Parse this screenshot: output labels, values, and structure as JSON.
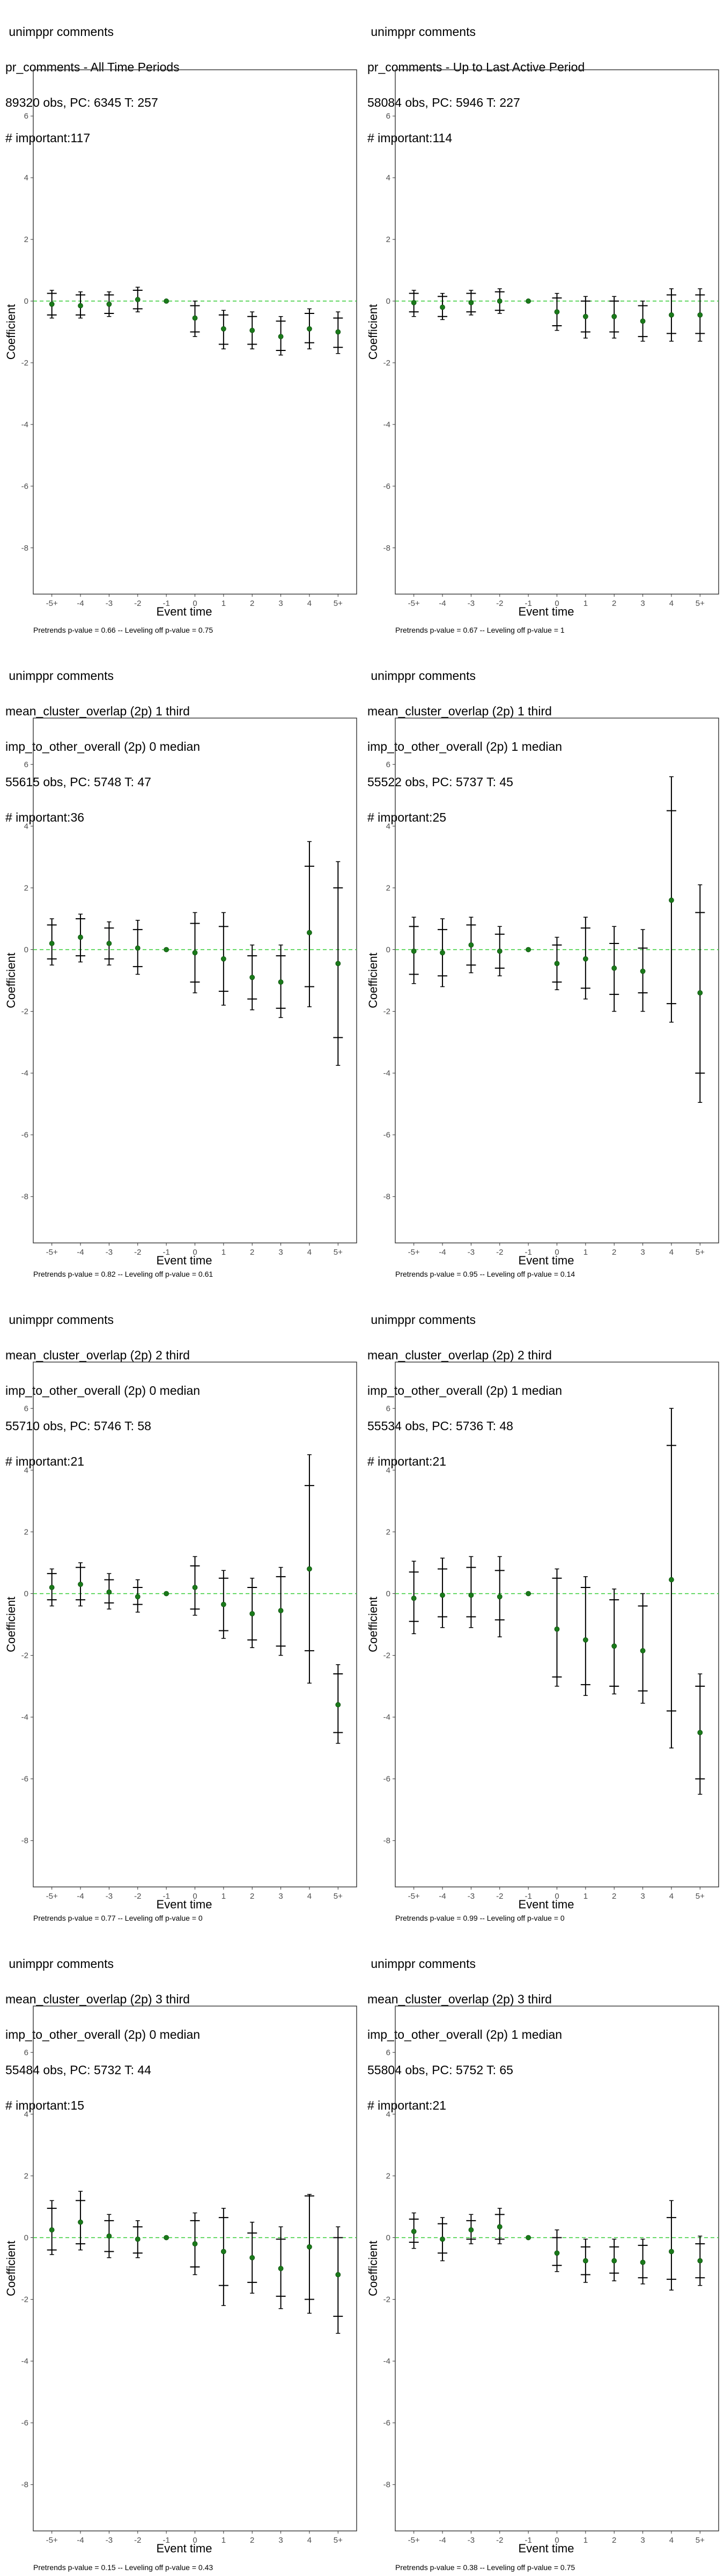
{
  "colors": {
    "point": "#1a7a1a",
    "errorbar": "#000000",
    "zero_line": "#33cc33",
    "tick_text": "#4d4d4d",
    "frame": "#333333"
  },
  "chart_data": [
    {
      "type": "scatter",
      "title_lines": [
        " unimppr comments",
        "pr_comments - All Time Periods",
        "89320 obs, PC: 6345 T: 257",
        "# important:117"
      ],
      "xlabel": "Event time",
      "ylabel": "Coefficient",
      "categories": [
        "-5+",
        "-4",
        "-3",
        "-2",
        "-1",
        "0",
        "1",
        "2",
        "3",
        "4",
        "5+"
      ],
      "ylim": [
        -9.5,
        7.5
      ],
      "yticks": [
        -8,
        -6,
        -4,
        -2,
        0,
        2,
        4,
        6
      ],
      "estimates": [
        -0.1,
        -0.15,
        -0.1,
        0.05,
        0.0,
        -0.55,
        -0.9,
        -0.95,
        -1.15,
        -0.9,
        -1.0
      ],
      "ci90": [
        [
          -0.45,
          0.25
        ],
        [
          -0.45,
          0.2
        ],
        [
          -0.4,
          0.2
        ],
        [
          -0.25,
          0.35
        ],
        null,
        [
          -1.0,
          -0.15
        ],
        [
          -1.4,
          -0.45
        ],
        [
          -1.4,
          -0.5
        ],
        [
          -1.6,
          -0.65
        ],
        [
          -1.35,
          -0.4
        ],
        [
          -1.5,
          -0.55
        ]
      ],
      "ci95": [
        [
          -0.55,
          0.35
        ],
        [
          -0.55,
          0.3
        ],
        [
          -0.5,
          0.3
        ],
        [
          -0.35,
          0.45
        ],
        null,
        [
          -1.15,
          0.0
        ],
        [
          -1.55,
          -0.3
        ],
        [
          -1.55,
          -0.35
        ],
        [
          -1.75,
          -0.5
        ],
        [
          -1.55,
          -0.25
        ],
        [
          -1.7,
          -0.35
        ]
      ],
      "footer": "Pretrends p-value = 0.66 -- Leveling off p-value = 0.75",
      "grid": false
    },
    {
      "type": "scatter",
      "title_lines": [
        " unimppr comments",
        "pr_comments - Up to Last Active Period",
        "58084 obs, PC: 5946 T: 227",
        "# important:114"
      ],
      "xlabel": "Event time",
      "ylabel": "Coefficient",
      "categories": [
        "-5+",
        "-4",
        "-3",
        "-2",
        "-1",
        "0",
        "1",
        "2",
        "3",
        "4",
        "5+"
      ],
      "ylim": [
        -9.5,
        7.5
      ],
      "yticks": [
        -8,
        -6,
        -4,
        -2,
        0,
        2,
        4,
        6
      ],
      "estimates": [
        -0.05,
        -0.2,
        -0.05,
        0.0,
        0.0,
        -0.35,
        -0.5,
        -0.5,
        -0.65,
        -0.45,
        -0.45
      ],
      "ci90": [
        [
          -0.35,
          0.25
        ],
        [
          -0.5,
          0.15
        ],
        [
          -0.35,
          0.25
        ],
        [
          -0.3,
          0.3
        ],
        null,
        [
          -0.8,
          0.1
        ],
        [
          -1.0,
          0.0
        ],
        [
          -1.0,
          0.0
        ],
        [
          -1.15,
          -0.15
        ],
        [
          -1.05,
          0.2
        ],
        [
          -1.05,
          0.2
        ]
      ],
      "ci95": [
        [
          -0.5,
          0.35
        ],
        [
          -0.6,
          0.25
        ],
        [
          -0.45,
          0.35
        ],
        [
          -0.4,
          0.4
        ],
        null,
        [
          -0.95,
          0.25
        ],
        [
          -1.2,
          0.15
        ],
        [
          -1.2,
          0.15
        ],
        [
          -1.3,
          0.0
        ],
        [
          -1.3,
          0.4
        ],
        [
          -1.3,
          0.4
        ]
      ],
      "footer": "Pretrends p-value = 0.67 -- Leveling off p-value = 1",
      "grid": false
    },
    {
      "type": "scatter",
      "title_lines": [
        " unimppr comments",
        "mean_cluster_overlap (2p) 1 third",
        "imp_to_other_overall (2p) 0 median",
        "55615 obs, PC: 5748 T: 47",
        "# important:36"
      ],
      "xlabel": "Event time",
      "ylabel": "Coefficient",
      "categories": [
        "-5+",
        "-4",
        "-3",
        "-2",
        "-1",
        "0",
        "1",
        "2",
        "3",
        "4",
        "5+"
      ],
      "ylim": [
        -9.5,
        7.5
      ],
      "yticks": [
        -8,
        -6,
        -4,
        -2,
        0,
        2,
        4,
        6
      ],
      "estimates": [
        0.2,
        0.4,
        0.2,
        0.05,
        0.0,
        -0.1,
        -0.3,
        -0.9,
        -1.05,
        0.55,
        -0.45
      ],
      "ci90": [
        [
          -0.3,
          0.8
        ],
        [
          -0.2,
          1.0
        ],
        [
          -0.3,
          0.7
        ],
        [
          -0.55,
          0.65
        ],
        null,
        [
          -1.05,
          0.85
        ],
        [
          -1.35,
          0.75
        ],
        [
          -1.6,
          -0.2
        ],
        [
          -1.9,
          -0.2
        ],
        [
          -1.2,
          2.7
        ],
        [
          -2.85,
          2.0
        ]
      ],
      "ci95": [
        [
          -0.5,
          1.0
        ],
        [
          -0.4,
          1.15
        ],
        [
          -0.5,
          0.9
        ],
        [
          -0.8,
          0.95
        ],
        null,
        [
          -1.4,
          1.2
        ],
        [
          -1.8,
          1.2
        ],
        [
          -1.95,
          0.15
        ],
        [
          -2.2,
          0.15
        ],
        [
          -1.85,
          3.5
        ],
        [
          -3.75,
          2.85
        ]
      ],
      "footer": "Pretrends p-value = 0.82 -- Leveling off p-value = 0.61",
      "grid": false
    },
    {
      "type": "scatter",
      "title_lines": [
        " unimppr comments",
        "mean_cluster_overlap (2p) 1 third",
        "imp_to_other_overall (2p) 1 median",
        "55522 obs, PC: 5737 T: 45",
        "# important:25"
      ],
      "xlabel": "Event time",
      "ylabel": "Coefficient",
      "categories": [
        "-5+",
        "-4",
        "-3",
        "-2",
        "-1",
        "0",
        "1",
        "2",
        "3",
        "4",
        "5+"
      ],
      "ylim": [
        -9.5,
        7.5
      ],
      "yticks": [
        -8,
        -6,
        -4,
        -2,
        0,
        2,
        4,
        6
      ],
      "estimates": [
        -0.05,
        -0.1,
        0.15,
        -0.05,
        0.0,
        -0.45,
        -0.3,
        -0.6,
        -0.7,
        1.6,
        -1.4
      ],
      "ci90": [
        [
          -0.8,
          0.75
        ],
        [
          -0.85,
          0.65
        ],
        [
          -0.5,
          0.8
        ],
        [
          -0.6,
          0.5
        ],
        null,
        [
          -1.05,
          0.15
        ],
        [
          -1.25,
          0.7
        ],
        [
          -1.45,
          0.2
        ],
        [
          -1.4,
          0.05
        ],
        [
          -1.75,
          4.5
        ],
        [
          -4.0,
          1.2
        ]
      ],
      "ci95": [
        [
          -1.1,
          1.05
        ],
        [
          -1.2,
          1.0
        ],
        [
          -0.75,
          1.05
        ],
        [
          -0.85,
          0.75
        ],
        null,
        [
          -1.3,
          0.4
        ],
        [
          -1.6,
          1.05
        ],
        [
          -2.0,
          0.75
        ],
        [
          -2.0,
          0.65
        ],
        [
          -2.35,
          5.6
        ],
        [
          -4.95,
          2.1
        ]
      ],
      "footer": "Pretrends p-value = 0.95 -- Leveling off p-value = 0.14",
      "grid": false
    },
    {
      "type": "scatter",
      "title_lines": [
        " unimppr comments",
        "mean_cluster_overlap (2p) 2 third",
        "imp_to_other_overall (2p) 0 median",
        "55710 obs, PC: 5746 T: 58",
        "# important:21"
      ],
      "xlabel": "Event time",
      "ylabel": "Coefficient",
      "categories": [
        "-5+",
        "-4",
        "-3",
        "-2",
        "-1",
        "0",
        "1",
        "2",
        "3",
        "4",
        "5+"
      ],
      "ylim": [
        -9.5,
        7.5
      ],
      "yticks": [
        -8,
        -6,
        -4,
        -2,
        0,
        2,
        4,
        6
      ],
      "estimates": [
        0.2,
        0.3,
        0.05,
        -0.1,
        0.0,
        0.2,
        -0.35,
        -0.65,
        -0.55,
        0.8,
        -3.6
      ],
      "ci90": [
        [
          -0.2,
          0.65
        ],
        [
          -0.2,
          0.85
        ],
        [
          -0.3,
          0.45
        ],
        [
          -0.35,
          0.2
        ],
        null,
        [
          -0.5,
          0.9
        ],
        [
          -1.2,
          0.5
        ],
        [
          -1.5,
          0.2
        ],
        [
          -1.7,
          0.55
        ],
        [
          -1.85,
          3.5
        ],
        [
          -4.5,
          -2.6
        ]
      ],
      "ci95": [
        [
          -0.4,
          0.8
        ],
        [
          -0.4,
          1.0
        ],
        [
          -0.5,
          0.65
        ],
        [
          -0.6,
          0.45
        ],
        null,
        [
          -0.7,
          1.2
        ],
        [
          -1.45,
          0.75
        ],
        [
          -1.75,
          0.5
        ],
        [
          -2.0,
          0.85
        ],
        [
          -2.9,
          4.5
        ],
        [
          -4.85,
          -2.3
        ]
      ],
      "footer": "Pretrends p-value = 0.77 -- Leveling off p-value = 0",
      "grid": false
    },
    {
      "type": "scatter",
      "title_lines": [
        " unimppr comments",
        "mean_cluster_overlap (2p) 2 third",
        "imp_to_other_overall (2p) 1 median",
        "55534 obs, PC: 5736 T: 48",
        "# important:21"
      ],
      "xlabel": "Event time",
      "ylabel": "Coefficient",
      "categories": [
        "-5+",
        "-4",
        "-3",
        "-2",
        "-1",
        "0",
        "1",
        "2",
        "3",
        "4",
        "5+"
      ],
      "ylim": [
        -9.5,
        7.5
      ],
      "yticks": [
        -8,
        -6,
        -4,
        -2,
        0,
        2,
        4,
        6
      ],
      "estimates": [
        -0.15,
        -0.05,
        -0.05,
        -0.1,
        0.0,
        -1.15,
        -1.5,
        -1.7,
        -1.85,
        0.45,
        -4.5
      ],
      "ci90": [
        [
          -0.9,
          0.7
        ],
        [
          -0.75,
          0.8
        ],
        [
          -0.75,
          0.85
        ],
        [
          -0.85,
          0.75
        ],
        null,
        [
          -2.7,
          0.5
        ],
        [
          -2.95,
          0.2
        ],
        [
          -3.0,
          -0.2
        ],
        [
          -3.15,
          -0.4
        ],
        [
          -3.8,
          4.8
        ],
        [
          -6.0,
          -3.0
        ]
      ],
      "ci95": [
        [
          -1.3,
          1.05
        ],
        [
          -1.1,
          1.15
        ],
        [
          -1.1,
          1.2
        ],
        [
          -1.4,
          1.2
        ],
        null,
        [
          -3.0,
          0.8
        ],
        [
          -3.3,
          0.55
        ],
        [
          -3.25,
          0.15
        ],
        [
          -3.55,
          0.0
        ],
        [
          -5.0,
          6.0
        ],
        [
          -6.5,
          -2.6
        ]
      ],
      "footer": "Pretrends p-value = 0.99 -- Leveling off p-value = 0",
      "grid": false
    },
    {
      "type": "scatter",
      "title_lines": [
        " unimppr comments",
        "mean_cluster_overlap (2p) 3 third",
        "imp_to_other_overall (2p) 0 median",
        "55484 obs, PC: 5732 T: 44",
        "# important:15"
      ],
      "xlabel": "Event time",
      "ylabel": "Coefficient",
      "categories": [
        "-5+",
        "-4",
        "-3",
        "-2",
        "-1",
        "0",
        "1",
        "2",
        "3",
        "4",
        "5+"
      ],
      "ylim": [
        -9.5,
        7.5
      ],
      "yticks": [
        -8,
        -6,
        -4,
        -2,
        0,
        2,
        4,
        6
      ],
      "estimates": [
        0.25,
        0.5,
        0.05,
        -0.05,
        0.0,
        -0.2,
        -0.45,
        -0.65,
        -1.0,
        -0.3,
        -1.2
      ],
      "ci90": [
        [
          -0.4,
          0.95
        ],
        [
          -0.2,
          1.2
        ],
        [
          -0.45,
          0.55
        ],
        [
          -0.5,
          0.35
        ],
        null,
        [
          -0.95,
          0.55
        ],
        [
          -1.55,
          0.65
        ],
        [
          -1.45,
          0.15
        ],
        [
          -1.9,
          -0.05
        ],
        [
          -2.0,
          1.35
        ],
        [
          -2.55,
          0.0
        ]
      ],
      "ci95": [
        [
          -0.55,
          1.2
        ],
        [
          -0.4,
          1.5
        ],
        [
          -0.65,
          0.75
        ],
        [
          -0.65,
          0.55
        ],
        null,
        [
          -1.2,
          0.8
        ],
        [
          -2.2,
          0.95
        ],
        [
          -1.8,
          0.5
        ],
        [
          -2.3,
          0.35
        ],
        [
          -2.45,
          1.4
        ],
        [
          -3.1,
          0.35
        ]
      ],
      "footer": "Pretrends p-value = 0.15 -- Leveling off p-value = 0.43",
      "grid": false
    },
    {
      "type": "scatter",
      "title_lines": [
        " unimppr comments",
        "mean_cluster_overlap (2p) 3 third",
        "imp_to_other_overall (2p) 1 median",
        "55804 obs, PC: 5752 T: 65",
        "# important:21"
      ],
      "xlabel": "Event time",
      "ylabel": "Coefficient",
      "categories": [
        "-5+",
        "-4",
        "-3",
        "-2",
        "-1",
        "0",
        "1",
        "2",
        "3",
        "4",
        "5+"
      ],
      "ylim": [
        -9.5,
        7.5
      ],
      "yticks": [
        -8,
        -6,
        -4,
        -2,
        0,
        2,
        4,
        6
      ],
      "estimates": [
        0.2,
        -0.05,
        0.25,
        0.35,
        0.0,
        -0.5,
        -0.75,
        -0.75,
        -0.8,
        -0.45,
        -0.75
      ],
      "ci90": [
        [
          -0.15,
          0.6
        ],
        [
          -0.5,
          0.45
        ],
        [
          -0.05,
          0.55
        ],
        [
          -0.05,
          0.75
        ],
        null,
        [
          -0.9,
          0.0
        ],
        [
          -1.2,
          -0.3
        ],
        [
          -1.15,
          -0.3
        ],
        [
          -1.3,
          -0.25
        ],
        [
          -1.35,
          0.65
        ],
        [
          -1.3,
          -0.2
        ]
      ],
      "ci95": [
        [
          -0.35,
          0.8
        ],
        [
          -0.75,
          0.65
        ],
        [
          -0.2,
          0.75
        ],
        [
          -0.2,
          0.95
        ],
        null,
        [
          -1.1,
          0.25
        ],
        [
          -1.45,
          -0.05
        ],
        [
          -1.4,
          -0.05
        ],
        [
          -1.5,
          -0.05
        ],
        [
          -1.7,
          1.2
        ],
        [
          -1.55,
          0.05
        ]
      ],
      "footer": "Pretrends p-value = 0.38 -- Leveling off p-value = 0.75",
      "grid": false
    }
  ]
}
